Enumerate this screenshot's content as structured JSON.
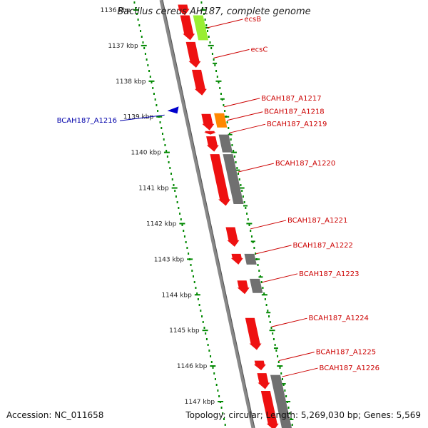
{
  "title": "Bacillus cereus AH187, complete genome",
  "footer": {
    "accession": "Accession: NC_011658",
    "topology": "Topology: circular; Length: 5,269,030 bp; Genes: 5,569"
  },
  "colors": {
    "cds_red": "#ee1111",
    "green": "#99ee33",
    "orange": "#ff8800",
    "gray": "#707070",
    "blue": "#0000cc",
    "label_red": "#cc0000",
    "label_blue": "#0000aa",
    "ruler_dot": "#008800",
    "backbone": "#888888"
  },
  "ruler": {
    "tick_labels": [
      "1136 kbp",
      "1137 kbp",
      "1138 kbp",
      "1139 kbp",
      "1140 kbp",
      "1141 kbp",
      "1142 kbp",
      "1143 kbp",
      "1144 kbp",
      "1145 kbp",
      "1146 kbp",
      "1147 kbp"
    ],
    "tick_kbp": [
      1136,
      1137,
      1138,
      1139,
      1140,
      1141,
      1142,
      1143,
      1144,
      1145,
      1146,
      1147
    ]
  },
  "features": [
    {
      "kbp_start": 1135.85,
      "kbp_end": 1136.15,
      "track": "forward_cds",
      "color": "cds_red"
    },
    {
      "kbp_start": 1136.15,
      "kbp_end": 1136.85,
      "track": "forward_cds",
      "color": "cds_red"
    },
    {
      "kbp_start": 1136.15,
      "kbp_end": 1136.85,
      "track": "forward_other",
      "color": "green"
    },
    {
      "kbp_start": 1136.9,
      "kbp_end": 1137.62,
      "track": "forward_cds",
      "color": "cds_red"
    },
    {
      "kbp_start": 1137.68,
      "kbp_end": 1138.4,
      "track": "forward_cds",
      "color": "cds_red"
    },
    {
      "kbp_start": 1138.75,
      "kbp_end": 1138.8,
      "track": "reverse_cds",
      "color": "blue"
    },
    {
      "kbp_start": 1138.92,
      "kbp_end": 1139.38,
      "track": "forward_cds",
      "color": "cds_red"
    },
    {
      "kbp_start": 1138.9,
      "kbp_end": 1139.3,
      "track": "forward_other",
      "color": "orange"
    },
    {
      "kbp_start": 1139.4,
      "kbp_end": 1139.5,
      "track": "forward_cds",
      "color": "cds_red"
    },
    {
      "kbp_start": 1139.55,
      "kbp_end": 1139.98,
      "track": "forward_cds",
      "color": "cds_red"
    },
    {
      "kbp_start": 1139.5,
      "kbp_end": 1140.0,
      "track": "forward_other",
      "color": "gray"
    },
    {
      "kbp_start": 1140.05,
      "kbp_end": 1141.5,
      "track": "forward_cds",
      "color": "cds_red"
    },
    {
      "kbp_start": 1140.05,
      "kbp_end": 1141.45,
      "track": "forward_other",
      "color": "gray"
    },
    {
      "kbp_start": 1142.1,
      "kbp_end": 1142.65,
      "track": "forward_cds",
      "color": "cds_red"
    },
    {
      "kbp_start": 1142.85,
      "kbp_end": 1143.15,
      "track": "forward_cds",
      "color": "cds_red"
    },
    {
      "kbp_start": 1142.85,
      "kbp_end": 1143.15,
      "track": "forward_other",
      "color": "gray"
    },
    {
      "kbp_start": 1143.6,
      "kbp_end": 1143.98,
      "track": "forward_cds",
      "color": "cds_red"
    },
    {
      "kbp_start": 1143.55,
      "kbp_end": 1143.95,
      "track": "forward_other",
      "color": "gray"
    },
    {
      "kbp_start": 1144.65,
      "kbp_end": 1145.55,
      "track": "forward_cds",
      "color": "cds_red"
    },
    {
      "kbp_start": 1145.85,
      "kbp_end": 1146.12,
      "track": "forward_cds",
      "color": "cds_red"
    },
    {
      "kbp_start": 1146.2,
      "kbp_end": 1146.65,
      "track": "forward_cds",
      "color": "cds_red"
    },
    {
      "kbp_start": 1146.25,
      "kbp_end": 1147.8,
      "track": "forward_other",
      "color": "gray"
    },
    {
      "kbp_start": 1146.7,
      "kbp_end": 1147.8,
      "track": "forward_cds",
      "color": "cds_red"
    }
  ],
  "labels": [
    {
      "text": "ecsB",
      "kbp": 1136.5,
      "side": "right",
      "color": "label_red"
    },
    {
      "text": "ecsC",
      "kbp": 1137.35,
      "side": "right",
      "color": "label_red"
    },
    {
      "text": "BCAH187_A1217",
      "kbp": 1138.72,
      "side": "right",
      "color": "label_red"
    },
    {
      "text": "BCAH187_A1218",
      "kbp": 1139.1,
      "side": "right",
      "color": "label_red"
    },
    {
      "text": "BCAH187_A1219",
      "kbp": 1139.45,
      "side": "right",
      "color": "label_red"
    },
    {
      "text": "BCAH187_A1220",
      "kbp": 1140.55,
      "side": "right",
      "color": "label_red"
    },
    {
      "text": "BCAH187_A1221",
      "kbp": 1142.15,
      "side": "right",
      "color": "label_red"
    },
    {
      "text": "BCAH187_A1222",
      "kbp": 1142.85,
      "side": "right",
      "color": "label_red"
    },
    {
      "text": "BCAH187_A1223",
      "kbp": 1143.65,
      "side": "right",
      "color": "label_red"
    },
    {
      "text": "BCAH187_A1224",
      "kbp": 1144.9,
      "side": "right",
      "color": "label_red"
    },
    {
      "text": "BCAH187_A1225",
      "kbp": 1145.85,
      "side": "right",
      "color": "label_red"
    },
    {
      "text": "BCAH187_A1226",
      "kbp": 1146.3,
      "side": "right",
      "color": "label_red"
    },
    {
      "text": "BCAH187_A1216",
      "kbp": 1138.95,
      "side": "left",
      "color": "label_blue"
    }
  ]
}
